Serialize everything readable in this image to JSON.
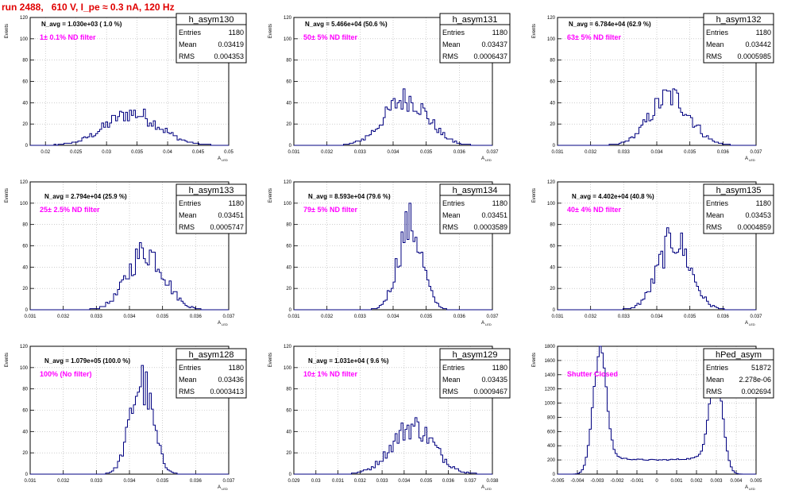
{
  "run_title": "run 2488,   610 V, I_pe ≈ 0.3 nA, 120 Hz",
  "chart_data": [
    {
      "type": "histogram",
      "name": "h_asym130",
      "ylabel": "Events",
      "xlabel": "A",
      "xlabel_sub": "LED",
      "stats": {
        "Entries": "1180",
        "Mean": "0.03419",
        "RMS": "0.004353"
      },
      "navg": "N_avg = 1.030e+03 ( 1.0 %)",
      "filter": "1± 0.1% ND filter",
      "filter_color": "#ff00ff",
      "xlim": [
        0.0175,
        0.05
      ],
      "ylim": [
        0,
        120
      ],
      "xticks": [
        0.02,
        0.025,
        0.03,
        0.035,
        0.04,
        0.045,
        0.05
      ],
      "xtick_labels": [
        "0.02",
        "0.025",
        "0.03",
        "0.035",
        "0.04",
        "0.045",
        "0.05"
      ],
      "yticks": [
        0,
        20,
        40,
        60,
        80,
        100,
        120
      ],
      "peak": {
        "mu": 0.0342,
        "sigma": 0.0044,
        "height": 30
      }
    },
    {
      "type": "histogram",
      "name": "h_asym131",
      "ylabel": "Events",
      "xlabel": "A",
      "xlabel_sub": "LED",
      "stats": {
        "Entries": "1180",
        "Mean": "0.03437",
        "RMS": "0.0006437"
      },
      "navg": "N_avg = 5.466e+04 (50.6 %)",
      "filter": "50± 5% ND filter",
      "filter_color": "#ff00ff",
      "xlim": [
        0.031,
        0.037
      ],
      "ylim": [
        0,
        120
      ],
      "xticks": [
        0.031,
        0.032,
        0.033,
        0.034,
        0.035,
        0.036,
        0.037
      ],
      "xtick_labels": [
        "0.031",
        "0.032",
        "0.033",
        "0.034",
        "0.035",
        "0.036",
        "0.037"
      ],
      "yticks": [
        0,
        20,
        40,
        60,
        80,
        100,
        120
      ],
      "peak": {
        "mu": 0.0344,
        "sigma": 0.00065,
        "height": 44
      }
    },
    {
      "type": "histogram",
      "name": "h_asym132",
      "ylabel": "Events",
      "xlabel": "A",
      "xlabel_sub": "LED",
      "stats": {
        "Entries": "1180",
        "Mean": "0.03442",
        "RMS": "0.0005985"
      },
      "navg": "N_avg = 6.784e+04 (62.9 %)",
      "filter": "63± 5% ND filter",
      "filter_color": "#ff00ff",
      "xlim": [
        0.031,
        0.037
      ],
      "ylim": [
        0,
        120
      ],
      "xticks": [
        0.031,
        0.032,
        0.033,
        0.034,
        0.035,
        0.036,
        0.037
      ],
      "xtick_labels": [
        "0.031",
        "0.032",
        "0.033",
        "0.034",
        "0.035",
        "0.036",
        "0.037"
      ],
      "yticks": [
        0,
        20,
        40,
        60,
        80,
        100,
        120
      ],
      "peak": {
        "mu": 0.0344,
        "sigma": 0.0006,
        "height": 46
      }
    },
    {
      "type": "histogram",
      "name": "h_asym133",
      "ylabel": "Events",
      "xlabel": "A",
      "xlabel_sub": "LED",
      "stats": {
        "Entries": "1180",
        "Mean": "0.03451",
        "RMS": "0.0005747"
      },
      "navg": "N_avg = 2.794e+04 (25.9 %)",
      "filter": "25± 2.5% ND filter",
      "filter_color": "#ff00ff",
      "xlim": [
        0.031,
        0.037
      ],
      "ylim": [
        0,
        120
      ],
      "xticks": [
        0.031,
        0.032,
        0.033,
        0.034,
        0.035,
        0.036,
        0.037
      ],
      "xtick_labels": [
        "0.031",
        "0.032",
        "0.033",
        "0.034",
        "0.035",
        "0.036",
        "0.037"
      ],
      "yticks": [
        0,
        20,
        40,
        60,
        80,
        100,
        120
      ],
      "peak": {
        "mu": 0.0345,
        "sigma": 0.00055,
        "height": 55
      }
    },
    {
      "type": "histogram",
      "name": "h_asym134",
      "ylabel": "Events",
      "xlabel": "A",
      "xlabel_sub": "LED",
      "stats": {
        "Entries": "1180",
        "Mean": "0.03451",
        "RMS": "0.0003589"
      },
      "navg": "N_avg = 8.593e+04 (79.6 %)",
      "filter": "79± 5% ND filter",
      "filter_color": "#ff00ff",
      "xlim": [
        0.031,
        0.037
      ],
      "ylim": [
        0,
        120
      ],
      "xticks": [
        0.031,
        0.032,
        0.033,
        0.034,
        0.035,
        0.036,
        0.037
      ],
      "xtick_labels": [
        "0.031",
        "0.032",
        "0.033",
        "0.034",
        "0.035",
        "0.036",
        "0.037"
      ],
      "yticks": [
        0,
        20,
        40,
        60,
        80,
        100,
        120
      ],
      "peak": {
        "mu": 0.03451,
        "sigma": 0.00036,
        "height": 80
      }
    },
    {
      "type": "histogram",
      "name": "h_asym135",
      "ylabel": "Events",
      "xlabel": "A",
      "xlabel_sub": "LED",
      "stats": {
        "Entries": "1180",
        "Mean": "0.03453",
        "RMS": "0.0004859"
      },
      "navg": "N_avg = 4.402e+04 (40.8 %)",
      "filter": "40± 4% ND filter",
      "filter_color": "#ff00ff",
      "xlim": [
        0.031,
        0.037
      ],
      "ylim": [
        0,
        120
      ],
      "xticks": [
        0.031,
        0.032,
        0.033,
        0.034,
        0.035,
        0.036,
        0.037
      ],
      "xtick_labels": [
        "0.031",
        "0.032",
        "0.033",
        "0.034",
        "0.035",
        "0.036",
        "0.037"
      ],
      "yticks": [
        0,
        20,
        40,
        60,
        80,
        100,
        120
      ],
      "peak": {
        "mu": 0.03453,
        "sigma": 0.00048,
        "height": 66
      }
    },
    {
      "type": "histogram",
      "name": "h_asym128",
      "ylabel": "Events",
      "xlabel": "A",
      "xlabel_sub": "LED",
      "stats": {
        "Entries": "1180",
        "Mean": "0.03436",
        "RMS": "0.0003413"
      },
      "navg": "N_avg = 1.079e+05 (100.0 %)",
      "filter": "100% (No filter)",
      "filter_color": "#ff00ff",
      "xlim": [
        0.031,
        0.037
      ],
      "ylim": [
        0,
        120
      ],
      "xticks": [
        0.031,
        0.032,
        0.033,
        0.034,
        0.035,
        0.036,
        0.037
      ],
      "xtick_labels": [
        "0.031",
        "0.032",
        "0.033",
        "0.034",
        "0.035",
        "0.036",
        "0.037"
      ],
      "yticks": [
        0,
        20,
        40,
        60,
        80,
        100,
        120
      ],
      "peak": {
        "mu": 0.03436,
        "sigma": 0.00034,
        "height": 86
      }
    },
    {
      "type": "histogram",
      "name": "h_asym129",
      "ylabel": "Events",
      "xlabel": "A",
      "xlabel_sub": "LED",
      "stats": {
        "Entries": "1180",
        "Mean": "0.03435",
        "RMS": "0.0009467"
      },
      "navg": "N_avg = 1.031e+04 ( 9.6 %)",
      "filter": "10± 1% ND filter",
      "filter_color": "#ff00ff",
      "xlim": [
        0.029,
        0.038
      ],
      "ylim": [
        0,
        120
      ],
      "xticks": [
        0.029,
        0.03,
        0.031,
        0.032,
        0.033,
        0.034,
        0.035,
        0.036,
        0.037,
        0.038
      ],
      "xtick_labels": [
        "0.029",
        "0.03",
        "0.031",
        "0.032",
        "0.033",
        "0.034",
        "0.035",
        "0.036",
        "0.037",
        "0.038"
      ],
      "yticks": [
        0,
        20,
        40,
        60,
        80,
        100,
        120
      ],
      "peak": {
        "mu": 0.0344,
        "sigma": 0.00095,
        "height": 45
      }
    },
    {
      "type": "histogram",
      "name": "hPed_asym",
      "ylabel": "Events",
      "xlabel": "A",
      "xlabel_sub": "LED",
      "stats": {
        "Entries": "51872",
        "Mean": "2.278e-06",
        "RMS": "0.002694"
      },
      "navg": "",
      "filter": "Shutter Closed",
      "filter_color": "#ff00ff",
      "xlim": [
        -0.005,
        0.005
      ],
      "ylim": [
        0,
        1800
      ],
      "xticks": [
        -0.005,
        -0.004,
        -0.003,
        -0.002,
        -0.001,
        0,
        0.001,
        0.002,
        0.003,
        0.004,
        0.005
      ],
      "xtick_labels": [
        "-0.005",
        "-0.004",
        "-0.003",
        "-0.002",
        "-0.001",
        "0",
        "0.001",
        "0.002",
        "0.003",
        "0.004",
        "0.005"
      ],
      "yticks": [
        0,
        200,
        400,
        600,
        800,
        1000,
        1200,
        1400,
        1600,
        1800
      ],
      "bimodal": {
        "mu1": -0.0029,
        "mu2": 0.003,
        "sigma": 0.00033,
        "height": 1650,
        "floor": 200
      }
    }
  ],
  "colors": {
    "hist": "#000080",
    "title_red": "#e00000",
    "grid": "#b0b0b0"
  }
}
